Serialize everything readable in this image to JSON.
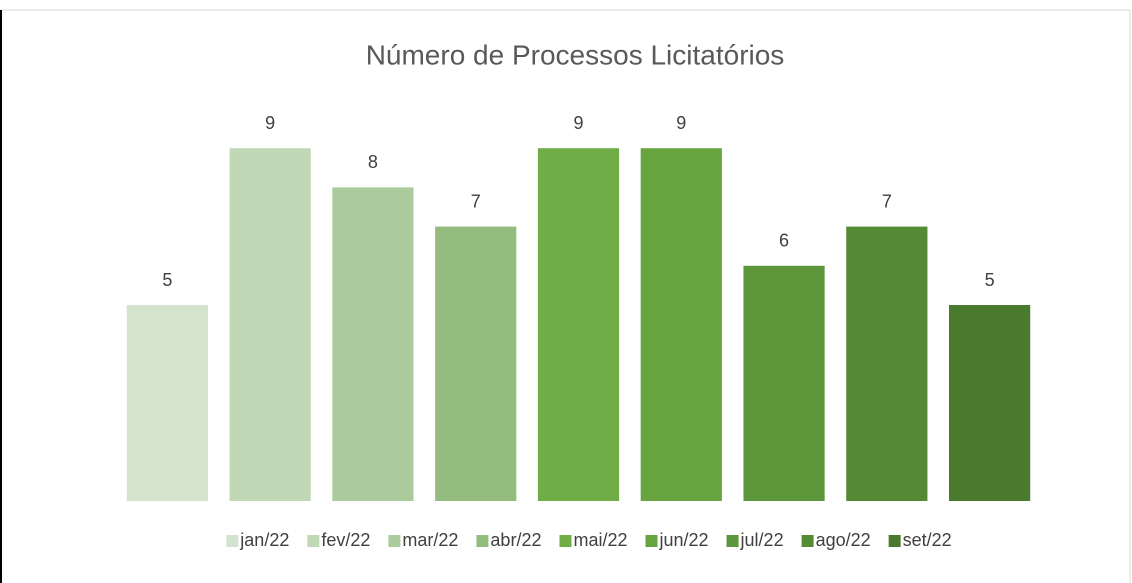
{
  "chart_data": {
    "type": "bar",
    "title": "Número de Processos Licitatórios",
    "categories": [
      "jan/22",
      "fev/22",
      "mar/22",
      "abr/22",
      "mai/22",
      "jun/22",
      "jul/22",
      "ago/22",
      "set/22"
    ],
    "values": [
      5,
      9,
      8,
      7,
      9,
      9,
      6,
      7,
      5
    ],
    "colors": [
      "#d3e3cd",
      "#c0d8b6",
      "#abcb9d",
      "#94bc7e",
      "#70ad47",
      "#67a440",
      "#5e963b",
      "#548a34",
      "#4a7a2e"
    ],
    "ylim": [
      0,
      10
    ],
    "legend": "bottom"
  }
}
